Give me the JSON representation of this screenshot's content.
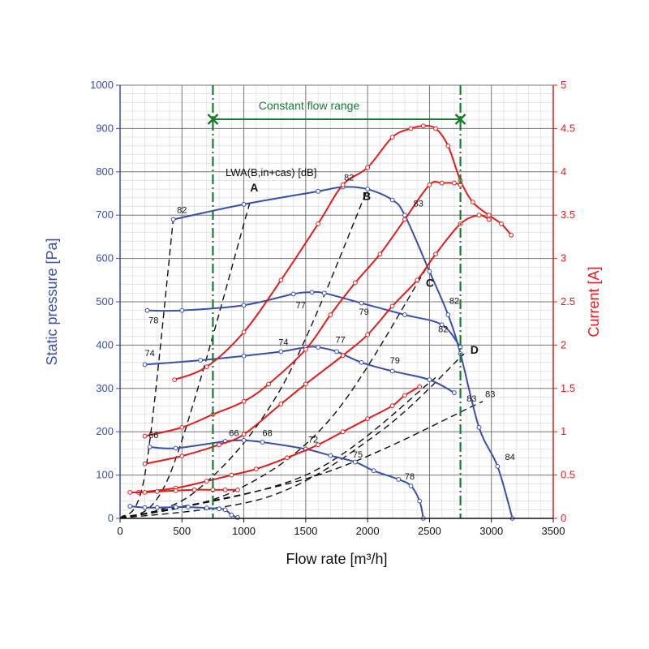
{
  "chart_data": {
    "type": "line",
    "title": "Constant flow range",
    "xlabel": "Flow rate [m³/h]",
    "ylabel_left": "Static pressure [Pa]",
    "ylabel_right": "Current [A]",
    "legend_text": "LWA(B,in+cas) [dB]",
    "xlim": [
      0,
      3500
    ],
    "ylim_left": [
      0,
      1000
    ],
    "ylim_right": [
      0,
      5
    ],
    "x_ticks": [
      0,
      500,
      1000,
      1500,
      2000,
      2500,
      3000,
      3500
    ],
    "y_ticks_left": [
      0,
      100,
      200,
      300,
      400,
      500,
      600,
      700,
      800,
      900,
      1000
    ],
    "y_ticks_right": [
      0,
      0.5,
      1,
      1.5,
      2,
      2.5,
      3,
      3.5,
      4,
      4.5,
      5
    ],
    "constant_flow_range": [
      750,
      2750
    ],
    "colors": {
      "pressure": "#3a4fa8",
      "current": "#e31b1b",
      "range": "#1a7a30",
      "system": "#111111",
      "axis_left": "#3a4fa8",
      "axis_right": "#e31b1b"
    },
    "pressure_series": [
      {
        "name": "P1",
        "x": [
          430,
          1000,
          1600,
          1800,
          2000,
          2200,
          2300,
          2500,
          2650,
          2750,
          2900,
          3050,
          3170
        ],
        "y": [
          690,
          725,
          755,
          765,
          760,
          735,
          700,
          570,
          470,
          380,
          210,
          120,
          0
        ]
      },
      {
        "name": "P2",
        "x": [
          220,
          500,
          1000,
          1400,
          1550,
          1650,
          1950,
          2300,
          2600,
          2750
        ],
        "y": [
          480,
          480,
          492,
          518,
          522,
          520,
          497,
          470,
          447,
          395
        ]
      },
      {
        "name": "P3",
        "x": [
          200,
          650,
          1000,
          1300,
          1500,
          1600,
          1750,
          1950,
          2200,
          2500,
          2700
        ],
        "y": [
          355,
          365,
          375,
          385,
          395,
          395,
          385,
          360,
          340,
          320,
          290
        ]
      },
      {
        "name": "P4",
        "x": [
          240,
          450,
          850,
          1000,
          1150,
          1500,
          1700,
          1900,
          2050,
          2250,
          2350,
          2420,
          2450
        ],
        "y": [
          165,
          162,
          178,
          180,
          176,
          160,
          145,
          130,
          110,
          90,
          75,
          40,
          0
        ]
      },
      {
        "name": "P5",
        "x": [
          80,
          200,
          300,
          450,
          550,
          700,
          800,
          850,
          900,
          950
        ],
        "y": [
          28,
          25,
          25,
          26,
          26,
          24,
          22,
          20,
          8,
          2
        ]
      }
    ],
    "current_series": [
      {
        "name": "I1",
        "x": [
          440,
          700,
          1000,
          1300,
          1600,
          1800,
          2000,
          2200,
          2350,
          2450,
          2550,
          2650,
          2750,
          2850,
          2980,
          3080,
          3160
        ],
        "y": [
          1.6,
          1.75,
          2.15,
          2.75,
          3.4,
          3.85,
          4.05,
          4.4,
          4.5,
          4.53,
          4.5,
          4.3,
          3.9,
          3.65,
          3.5,
          3.4,
          3.27
        ]
      },
      {
        "name": "I2",
        "x": [
          200,
          500,
          750,
          1000,
          1200,
          1500,
          1700,
          1900,
          2100,
          2300,
          2500,
          2600,
          2700,
          2750
        ],
        "y": [
          0.95,
          1.05,
          1.2,
          1.35,
          1.55,
          1.95,
          2.35,
          2.72,
          3.05,
          3.45,
          3.85,
          3.87,
          3.87,
          3.85
        ]
      },
      {
        "name": "I3",
        "x": [
          200,
          500,
          800,
          1000,
          1300,
          1500,
          1800,
          2000,
          2200,
          2400,
          2550,
          2750,
          2900,
          2980
        ],
        "y": [
          0.63,
          0.72,
          0.85,
          0.97,
          1.32,
          1.55,
          1.88,
          2.12,
          2.45,
          2.75,
          3.05,
          3.4,
          3.5,
          3.45
        ]
      },
      {
        "name": "I4",
        "x": [
          150,
          450,
          700,
          900,
          1100,
          1350,
          1600,
          1800,
          2000,
          2200,
          2300,
          2420
        ],
        "y": [
          0.3,
          0.35,
          0.43,
          0.5,
          0.57,
          0.7,
          0.85,
          1.0,
          1.15,
          1.3,
          1.42,
          1.52
        ]
      },
      {
        "name": "I5",
        "x": [
          80,
          200,
          300,
          450,
          600,
          750,
          850,
          950
        ],
        "y": [
          0.3,
          0.3,
          0.31,
          0.32,
          0.33,
          0.33,
          0.33,
          0.33
        ]
      }
    ],
    "system_curves": [
      {
        "name": "A",
        "x": [
          0,
          400,
          1050
        ],
        "y": [
          0,
          100,
          730
        ]
      },
      {
        "name": "A2",
        "x": [
          0,
          200,
          430
        ],
        "y": [
          0,
          100,
          690
        ]
      },
      {
        "name": "B",
        "x": [
          0,
          600,
          1300,
          2000
        ],
        "y": [
          0,
          60,
          300,
          760
        ]
      },
      {
        "name": "C",
        "x": [
          0,
          900,
          1700,
          2480
        ],
        "y": [
          0,
          60,
          230,
          580
        ]
      },
      {
        "name": "D",
        "x": [
          0,
          1200,
          2100,
          2780
        ],
        "y": [
          0,
          50,
          200,
          380
        ]
      },
      {
        "name": "S2",
        "x": [
          0,
          1600,
          2930
        ],
        "y": [
          0,
          100,
          270
        ]
      },
      {
        "name": "S3",
        "x": [
          0,
          1500,
          2550
        ],
        "y": [
          0,
          100,
          325
        ]
      }
    ],
    "curve_letters": [
      {
        "text": "A",
        "x": 1050,
        "y": 755
      },
      {
        "text": "B",
        "x": 1960,
        "y": 735
      },
      {
        "text": "C",
        "x": 2470,
        "y": 535
      },
      {
        "text": "D",
        "x": 2830,
        "y": 380
      }
    ],
    "noise_labels": [
      {
        "text": "82",
        "x": 460,
        "y": 705
      },
      {
        "text": "82",
        "x": 1810,
        "y": 780
      },
      {
        "text": "83",
        "x": 2370,
        "y": 720
      },
      {
        "text": "78",
        "x": 230,
        "y": 450
      },
      {
        "text": "77",
        "x": 1420,
        "y": 485
      },
      {
        "text": "79",
        "x": 1930,
        "y": 470
      },
      {
        "text": "82",
        "x": 2660,
        "y": 495
      },
      {
        "text": "82",
        "x": 2570,
        "y": 430
      },
      {
        "text": "74",
        "x": 200,
        "y": 375
      },
      {
        "text": "74",
        "x": 1280,
        "y": 400
      },
      {
        "text": "77",
        "x": 1740,
        "y": 405
      },
      {
        "text": "79",
        "x": 2180,
        "y": 358
      },
      {
        "text": "83",
        "x": 2800,
        "y": 270
      },
      {
        "text": "83",
        "x": 2950,
        "y": 280
      },
      {
        "text": "84",
        "x": 3110,
        "y": 135
      },
      {
        "text": "66",
        "x": 230,
        "y": 185
      },
      {
        "text": "66",
        "x": 880,
        "y": 190
      },
      {
        "text": "68",
        "x": 1150,
        "y": 190
      },
      {
        "text": "72",
        "x": 1520,
        "y": 175
      },
      {
        "text": "75",
        "x": 1880,
        "y": 140
      },
      {
        "text": "78",
        "x": 2300,
        "y": 90
      }
    ]
  }
}
